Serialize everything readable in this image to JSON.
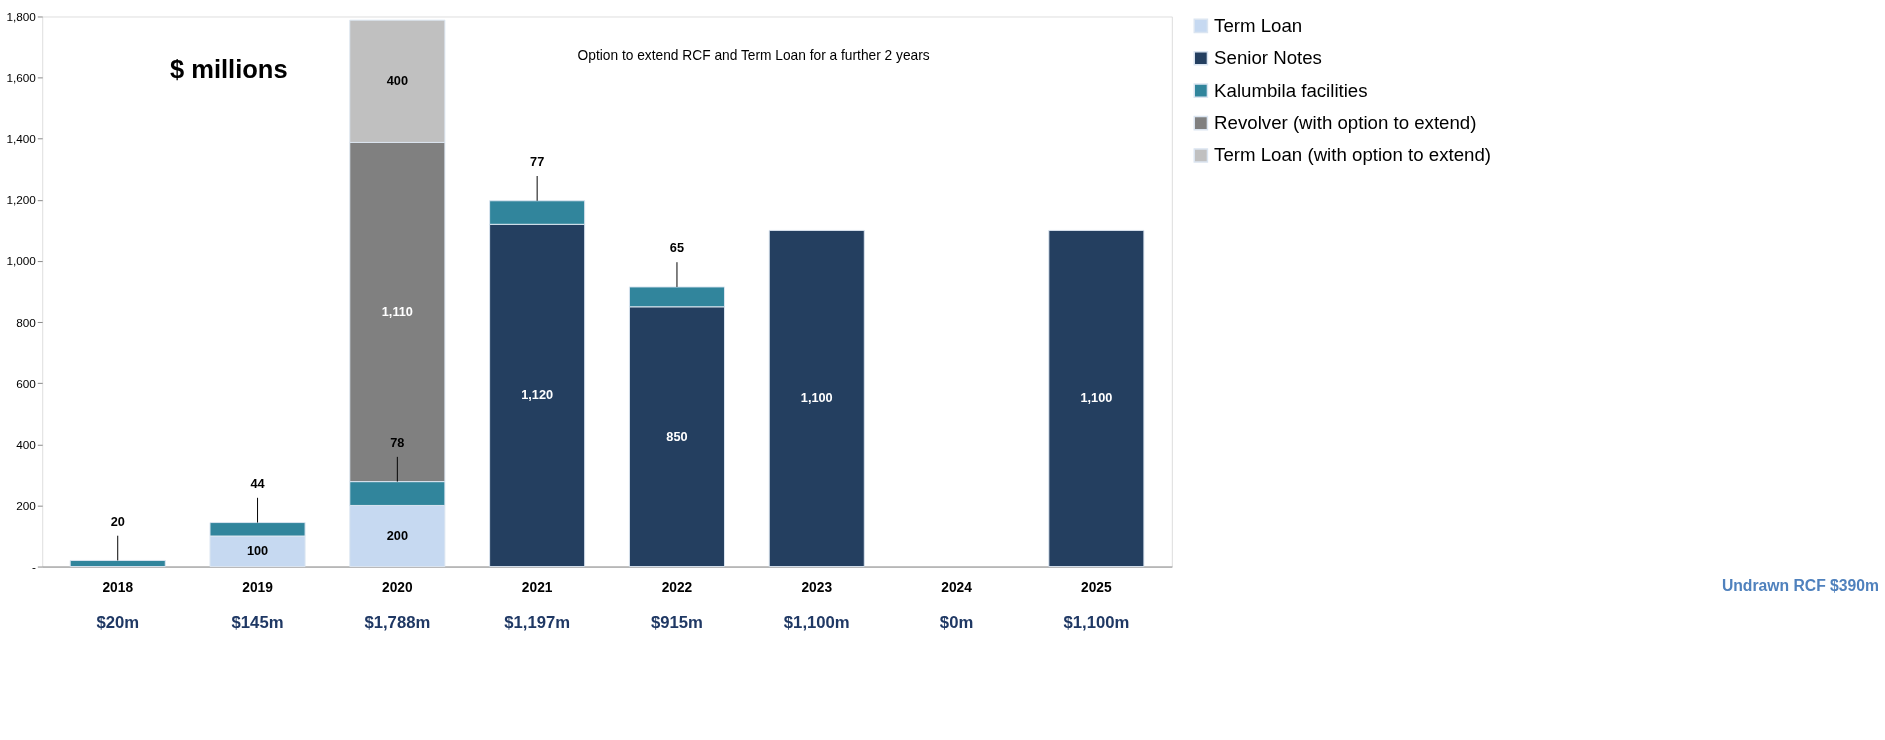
{
  "chart_data": {
    "type": "bar",
    "stacked": true,
    "categories": [
      "2018",
      "2019",
      "2020",
      "2021",
      "2022",
      "2023",
      "2024",
      "2025"
    ],
    "series": [
      {
        "name": "Term Loan",
        "color": "#c6d9f1",
        "values": [
          null,
          100,
          200,
          null,
          null,
          null,
          null,
          null
        ],
        "value_labels": [
          null,
          "100",
          "200",
          null,
          null,
          null,
          null,
          null
        ]
      },
      {
        "name": "Senior Notes",
        "color": "#243f60",
        "values": [
          null,
          null,
          null,
          1120,
          850,
          1100,
          null,
          1100
        ],
        "value_labels": [
          null,
          null,
          null,
          "1,120",
          "850",
          "1,100",
          null,
          "1,100"
        ]
      },
      {
        "name": "Kalumbila facilities",
        "color": "#31859c",
        "values": [
          20,
          44,
          78,
          77,
          65,
          null,
          null,
          null
        ],
        "value_labels": [
          "20",
          "44",
          "78",
          "77",
          "65",
          null,
          null,
          null
        ]
      },
      {
        "name": "Revolver (with option to extend)",
        "color": "#808080",
        "values": [
          null,
          null,
          1110,
          null,
          null,
          null,
          null,
          null
        ],
        "value_labels": [
          null,
          null,
          "1,110",
          null,
          null,
          null,
          null,
          null
        ]
      },
      {
        "name": "Term Loan (with option to extend)",
        "color": "#c0c0c0",
        "values": [
          null,
          null,
          400,
          null,
          null,
          null,
          null,
          null
        ],
        "value_labels": [
          null,
          null,
          "400",
          null,
          null,
          null,
          null,
          null
        ]
      }
    ],
    "totals": [
      "$20m",
      "$145m",
      "$1,788m",
      "$1,197m",
      "$915m",
      "$1,100m",
      "$0m",
      "$1,100m"
    ],
    "ylim": [
      0,
      1800
    ],
    "yticks": [
      {
        "value": 0,
        "label": "-"
      },
      200,
      400,
      600,
      800,
      {
        "value": 1000,
        "label": "1,000"
      },
      {
        "value": 1200,
        "label": "1,200"
      },
      {
        "value": 1400,
        "label": "1,400"
      },
      {
        "value": 1600,
        "label": "1,600"
      },
      {
        "value": 1800,
        "label": "1,800"
      }
    ],
    "grid": false,
    "legend": "right",
    "annotations": [
      "$ millions",
      "Option to extend RCF and Term Loan for a further 2 years",
      "Undrawn RCF $390m"
    ]
  }
}
